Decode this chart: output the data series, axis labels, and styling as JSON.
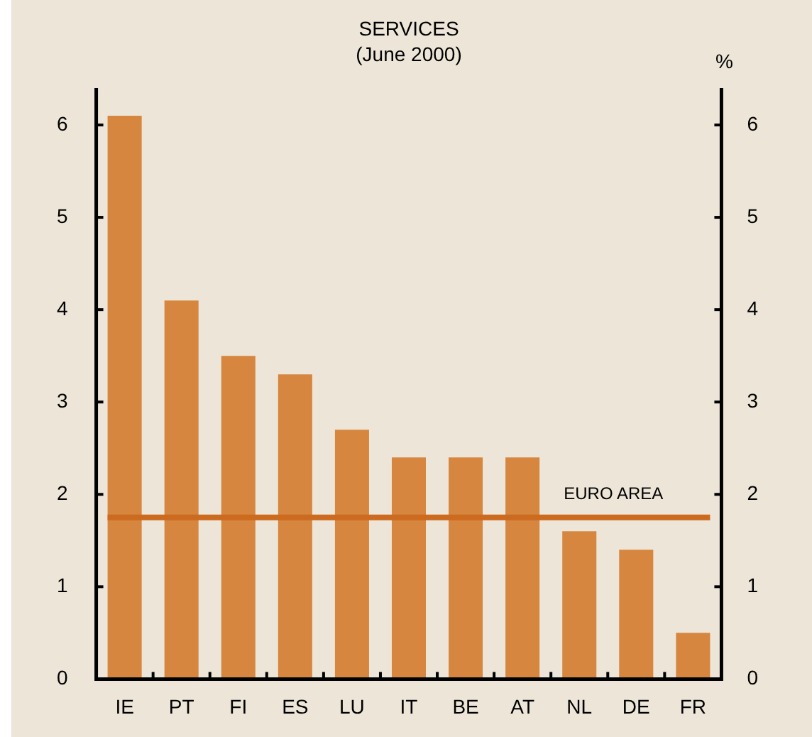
{
  "chart_data": {
    "type": "bar",
    "title": "SERVICES",
    "subtitle": "(June 2000)",
    "y2label": "%",
    "categories": [
      "IE",
      "PT",
      "FI",
      "ES",
      "LU",
      "IT",
      "BE",
      "AT",
      "NL",
      "DE",
      "FR"
    ],
    "values": [
      6.1,
      4.1,
      3.5,
      3.3,
      2.7,
      2.4,
      2.4,
      2.4,
      1.6,
      1.4,
      0.5
    ],
    "color": "#d6863f",
    "ylim": [
      0,
      6.4
    ],
    "yticks": [
      0,
      1,
      2,
      3,
      4,
      5,
      6
    ],
    "y2lim": [
      0,
      6.4
    ],
    "y2ticks": [
      0,
      1,
      2,
      3,
      4,
      5,
      6
    ],
    "ref_lines": [
      {
        "axis": "y",
        "value": 1.75,
        "label": "EURO AREA",
        "color": "#cc6a1f"
      }
    ],
    "grid": false,
    "legend": false
  }
}
